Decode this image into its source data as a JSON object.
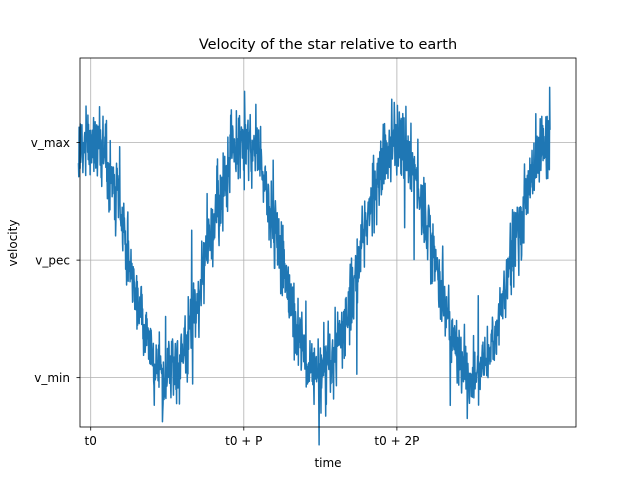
{
  "chart_data": {
    "type": "line",
    "title": "Velocity of the star relative to earth",
    "xlabel": "time",
    "ylabel": "velocity",
    "grid": true,
    "legend": "none",
    "xlim": [
      -0.07,
      3.17
    ],
    "ylim": [
      -1.42,
      1.72
    ],
    "x_ticks": [
      {
        "value": 0,
        "label": "t0"
      },
      {
        "value": 1,
        "label": "t0 + P"
      },
      {
        "value": 2,
        "label": "t0 + 2P"
      }
    ],
    "y_ticks": [
      {
        "value": -1,
        "label": "v_min"
      },
      {
        "value": 0,
        "label": "v_pec"
      },
      {
        "value": 1,
        "label": "v_max"
      }
    ],
    "series": [
      {
        "color": "#1f77b4",
        "description_model": "sinusoid v_pec + A*cos(2*pi*(t - t0)/P) plus dense random noise",
        "x_range": [
          -0.08,
          3.0
        ],
        "amplitude": 1.0,
        "noise_std": 0.15,
        "sample_count": 1500
      }
    ]
  }
}
